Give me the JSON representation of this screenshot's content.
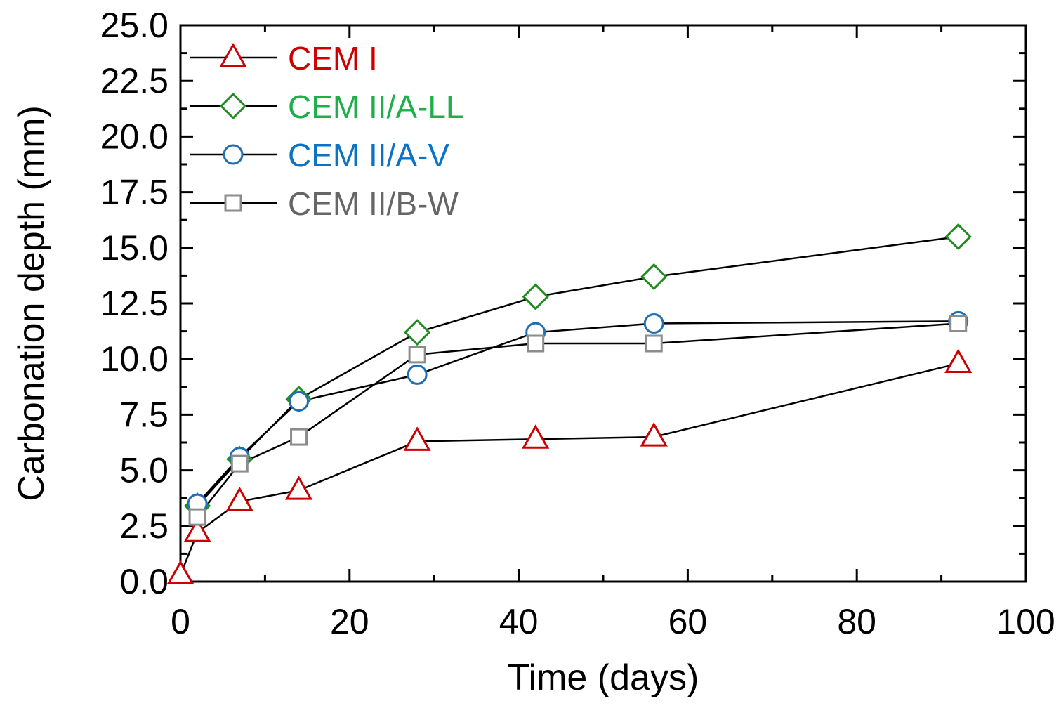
{
  "chart_data": {
    "type": "line",
    "title": "",
    "xlabel": "Time (days)",
    "ylabel": "Carbonation depth (mm)",
    "xlim": [
      0,
      100
    ],
    "ylim": [
      0,
      25
    ],
    "x_ticks": [
      "0",
      "20",
      "40",
      "60",
      "80",
      "100"
    ],
    "y_ticks": [
      "0.0",
      "2.5",
      "5.0",
      "7.5",
      "10.0",
      "12.5",
      "15.0",
      "17.5",
      "20.0",
      "22.5",
      "25.0"
    ],
    "grid": false,
    "legend_position": "top-left",
    "series": [
      {
        "name": "CEM I",
        "marker": "triangle",
        "color": "#cc0000",
        "text_color": "#cc0000",
        "x": [
          0,
          2,
          7,
          14,
          28,
          42,
          56,
          92
        ],
        "y": [
          0.3,
          2.2,
          3.6,
          4.1,
          6.3,
          6.4,
          6.5,
          9.8
        ]
      },
      {
        "name": "CEM II/A-LL",
        "marker": "diamond",
        "color": "#1e8c1e",
        "text_color": "#1fae4a",
        "x": [
          2,
          7,
          14,
          28,
          42,
          56,
          92
        ],
        "y": [
          3.4,
          5.5,
          8.2,
          11.2,
          12.8,
          13.7,
          15.5
        ]
      },
      {
        "name": "CEM II/A-V",
        "marker": "circle",
        "color": "#1f6fb4",
        "text_color": "#0b72c4",
        "x": [
          2,
          7,
          14,
          28,
          42,
          56,
          92
        ],
        "y": [
          3.5,
          5.6,
          8.1,
          9.3,
          11.2,
          11.6,
          11.7
        ]
      },
      {
        "name": "CEM II/B-W",
        "marker": "square",
        "color": "#8c8c8c",
        "text_color": "#666666",
        "x": [
          2,
          7,
          14,
          28,
          42,
          56,
          92
        ],
        "y": [
          2.9,
          5.3,
          6.5,
          10.2,
          10.7,
          10.7,
          11.6
        ]
      }
    ]
  }
}
